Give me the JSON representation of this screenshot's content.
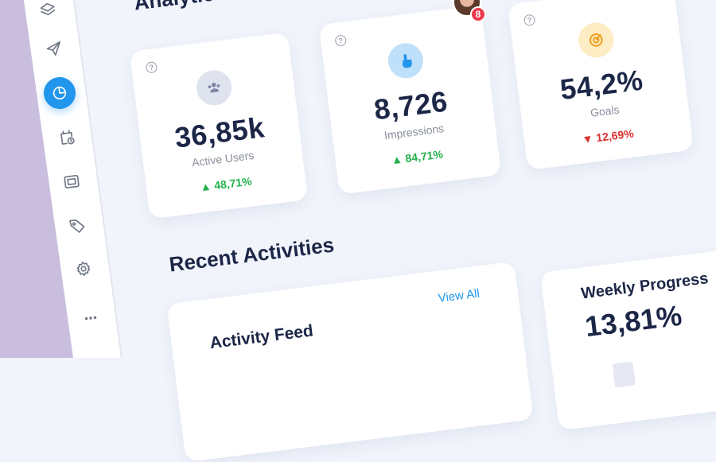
{
  "header": {
    "title": "Analytics O",
    "notification_count": "8"
  },
  "sidebar": {
    "items": [
      {
        "icon": "layers-icon"
      },
      {
        "icon": "send-icon"
      },
      {
        "icon": "pie-chart-icon",
        "active": true
      },
      {
        "icon": "calendar-clock-icon"
      },
      {
        "icon": "frame-icon"
      },
      {
        "icon": "tag-icon"
      },
      {
        "icon": "gear-icon"
      },
      {
        "icon": "more-dots-icon"
      }
    ]
  },
  "stats": [
    {
      "value": "36,85k",
      "label": "Active Users",
      "change": "48,71%",
      "trend": "up",
      "icon": "users-icon",
      "icon_bg": "#dfe3ee"
    },
    {
      "value": "8,726",
      "label": "Impressions",
      "change": "84,71%",
      "trend": "up",
      "icon": "pointer-hand-icon",
      "icon_bg": "#bfe0fb"
    },
    {
      "value": "54,2%",
      "label": "Goals",
      "change": "12,69%",
      "trend": "down",
      "icon": "target-icon",
      "icon_bg": "#fdecc4"
    }
  ],
  "help_glyph": "?",
  "recent": {
    "title": "Recent Activities",
    "feed_title": "Activity Feed",
    "view_all": "View All"
  },
  "weekly": {
    "title": "Weekly Progress",
    "value": "13,81%"
  },
  "colors": {
    "accent": "#2196ec",
    "up": "#22b14c",
    "down": "#dc2f2f"
  }
}
